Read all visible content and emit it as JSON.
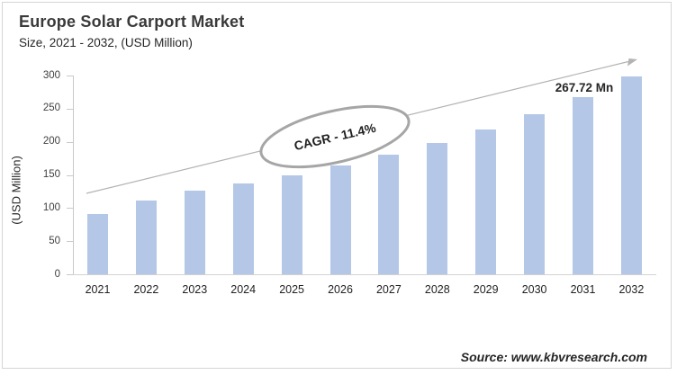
{
  "header": {
    "title": "Europe Solar Carport Market",
    "subtitle": "Size, 2021 - 2032, (USD Million)"
  },
  "chart_data": {
    "type": "bar",
    "categories": [
      "2021",
      "2022",
      "2023",
      "2024",
      "2025",
      "2026",
      "2027",
      "2028",
      "2029",
      "2030",
      "2031",
      "2032"
    ],
    "values": [
      91,
      111,
      126,
      137,
      149,
      164,
      180,
      198,
      219,
      242,
      267.72,
      298
    ],
    "title": "Europe Solar Carport Market",
    "subtitle": "Size, 2021 - 2032, (USD Million)",
    "xlabel": "",
    "ylabel": "(USD Million)",
    "ylim": [
      0,
      300
    ],
    "yticks": [
      0,
      50,
      100,
      150,
      200,
      250,
      300
    ],
    "bar_color": "#b4c7e7",
    "grid": false,
    "legend_position": "none",
    "annotations": [
      {
        "type": "ellipse-label",
        "text": "CAGR - 11.4%"
      },
      {
        "type": "data-label",
        "category": "2031",
        "text": "267.72 Mn"
      },
      {
        "type": "trend-arrow",
        "direction": "up-right"
      }
    ]
  },
  "annotations": {
    "cagr_label": "CAGR - 11.4%",
    "peak_label": "267.72 Mn"
  },
  "source": {
    "text": "Source: www.kbvresearch.com"
  },
  "colors": {
    "bar": "#b4c7e7",
    "axis": "#c9c9c9",
    "trend_arrow": "#b3b3b3",
    "ellipse_stroke": "#a6a6a6",
    "title_text": "#3a3a3a",
    "body_text": "#262626"
  }
}
